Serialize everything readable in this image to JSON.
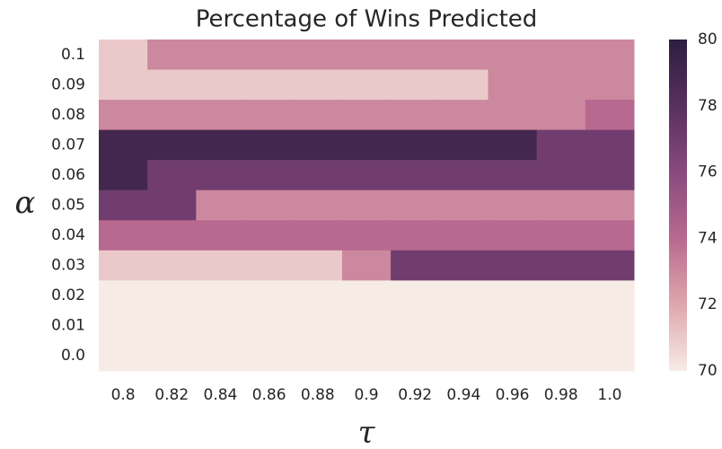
{
  "chart_data": {
    "type": "heatmap",
    "title": "Percentage of Wins Predicted",
    "x_label": "τ",
    "y_label": "α",
    "x": [
      "0.8",
      "0.82",
      "0.84",
      "0.86",
      "0.88",
      "0.9",
      "0.92",
      "0.94",
      "0.96",
      "0.98",
      "1.0"
    ],
    "y": [
      "0.1",
      "0.09",
      "0.08",
      "0.07",
      "0.06",
      "0.05",
      "0.04",
      "0.03",
      "0.02",
      "0.01",
      "0.0"
    ],
    "values": [
      [
        71,
        73,
        73,
        73,
        73,
        73,
        73,
        73,
        73,
        73,
        73
      ],
      [
        71,
        71,
        71,
        71,
        71,
        71,
        71,
        71,
        73,
        73,
        73
      ],
      [
        73,
        73,
        73,
        73,
        73,
        73,
        73,
        73,
        73,
        73,
        74
      ],
      [
        79,
        79,
        79,
        79,
        79,
        79,
        79,
        79,
        79,
        77,
        77
      ],
      [
        79,
        77,
        77,
        77,
        77,
        77,
        77,
        77,
        77,
        77,
        77
      ],
      [
        77,
        77,
        73,
        73,
        73,
        73,
        73,
        73,
        73,
        73,
        73
      ],
      [
        74,
        74,
        74,
        74,
        74,
        74,
        74,
        74,
        74,
        74,
        74
      ],
      [
        71,
        71,
        71,
        71,
        71,
        73,
        77,
        77,
        77,
        77,
        77
      ],
      [
        70,
        70,
        70,
        70,
        70,
        70,
        70,
        70,
        70,
        70,
        70
      ],
      [
        70,
        70,
        70,
        70,
        70,
        70,
        70,
        70,
        70,
        70,
        70
      ],
      [
        70,
        70,
        70,
        70,
        70,
        70,
        70,
        70,
        70,
        70,
        70
      ]
    ],
    "zlim": [
      70,
      80
    ],
    "zticks": [
      70,
      72,
      74,
      76,
      78,
      80
    ],
    "colorscale": [
      "#f7ebe6",
      "#dfa7ad",
      "#b8698f",
      "#894a7e",
      "#58305f",
      "#2d1e3e"
    ]
  }
}
